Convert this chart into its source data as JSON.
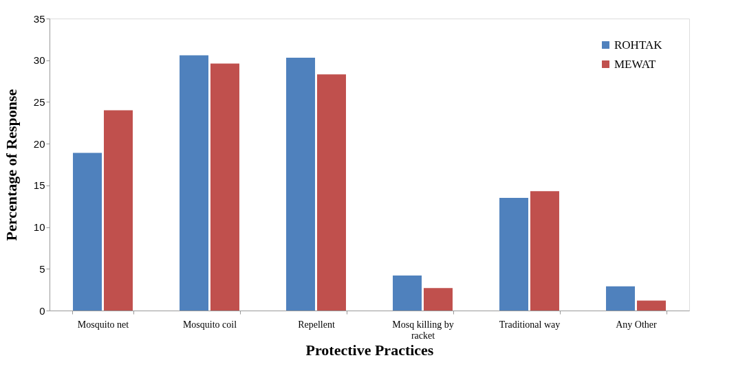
{
  "chart_data": {
    "type": "bar",
    "xlabel": "Protective Practices",
    "ylabel": "Percentage  of  Response",
    "categories": [
      "Mosquito net",
      "Mosquito coil",
      "Repellent",
      "Mosq  killing by  racket",
      "Traditional way",
      "Any Other"
    ],
    "series": [
      {
        "name": "ROHTAK",
        "color": "#4f81bd",
        "values": [
          18.9,
          30.6,
          30.3,
          4.2,
          13.5,
          2.9
        ]
      },
      {
        "name": "MEWAT",
        "color": "#c0504d",
        "values": [
          24.0,
          29.6,
          28.3,
          2.7,
          14.3,
          1.2
        ]
      }
    ],
    "ylim": [
      0,
      35
    ],
    "yticks": [
      0,
      5,
      10,
      15,
      20,
      25,
      30,
      35
    ],
    "grid": false,
    "legend": "top right"
  }
}
